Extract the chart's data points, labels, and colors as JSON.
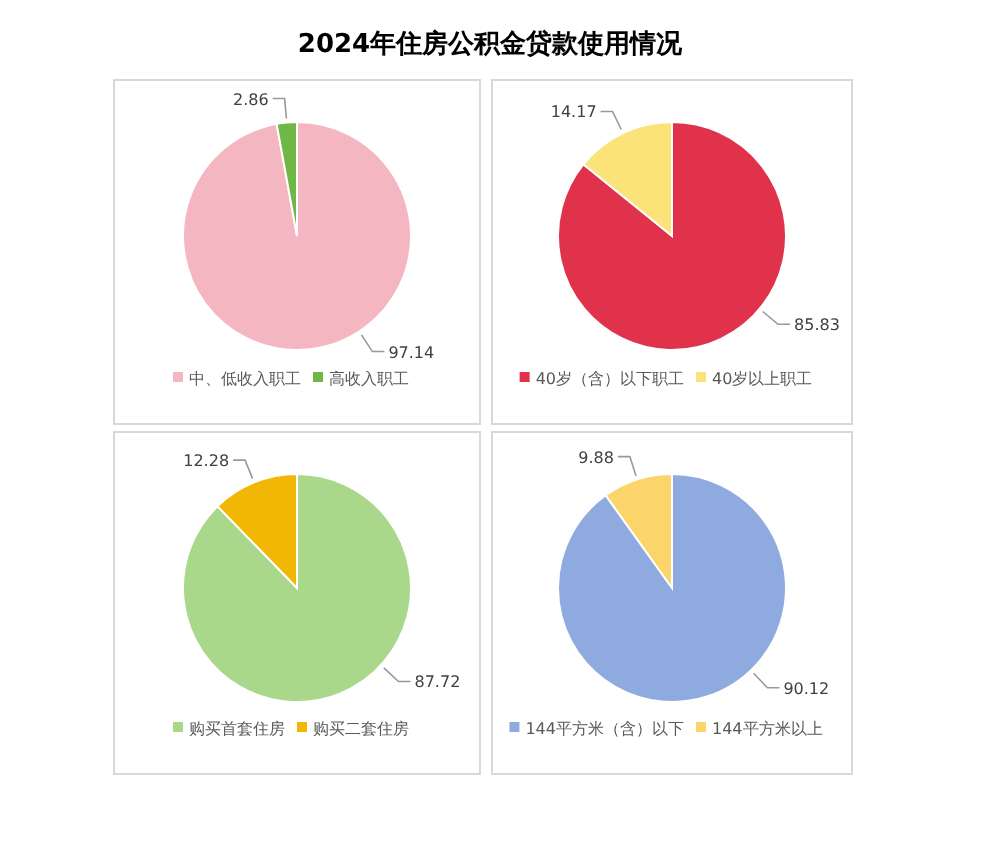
{
  "chart_data": [
    {
      "type": "pie",
      "title": "2024年住房公积金贷款使用情况",
      "categories": [
        "中、低收入职工",
        "高收入职工"
      ],
      "values": [
        97.14,
        2.86
      ],
      "colors": [
        "#f4b6c0",
        "#6fb848"
      ],
      "data_labels": true,
      "legend": "bottom"
    },
    {
      "type": "pie",
      "categories": [
        "40岁（含）以下职工",
        "40岁以上职工"
      ],
      "values": [
        85.83,
        14.17
      ],
      "colors": [
        "#e0334b",
        "#fbe37a"
      ],
      "data_labels": true,
      "legend": "bottom"
    },
    {
      "type": "pie",
      "categories": [
        "购买首套住房",
        "购买二套住房"
      ],
      "values": [
        87.72,
        12.28
      ],
      "colors": [
        "#a9d88b",
        "#f2b705"
      ],
      "data_labels": true,
      "legend": "bottom"
    },
    {
      "type": "pie",
      "categories": [
        "144平方米（含）以下",
        "144平方米以上"
      ],
      "values": [
        90.12,
        9.88
      ],
      "colors": [
        "#8eaadf",
        "#fcd56a"
      ],
      "data_labels": true,
      "legend": "bottom"
    }
  ]
}
